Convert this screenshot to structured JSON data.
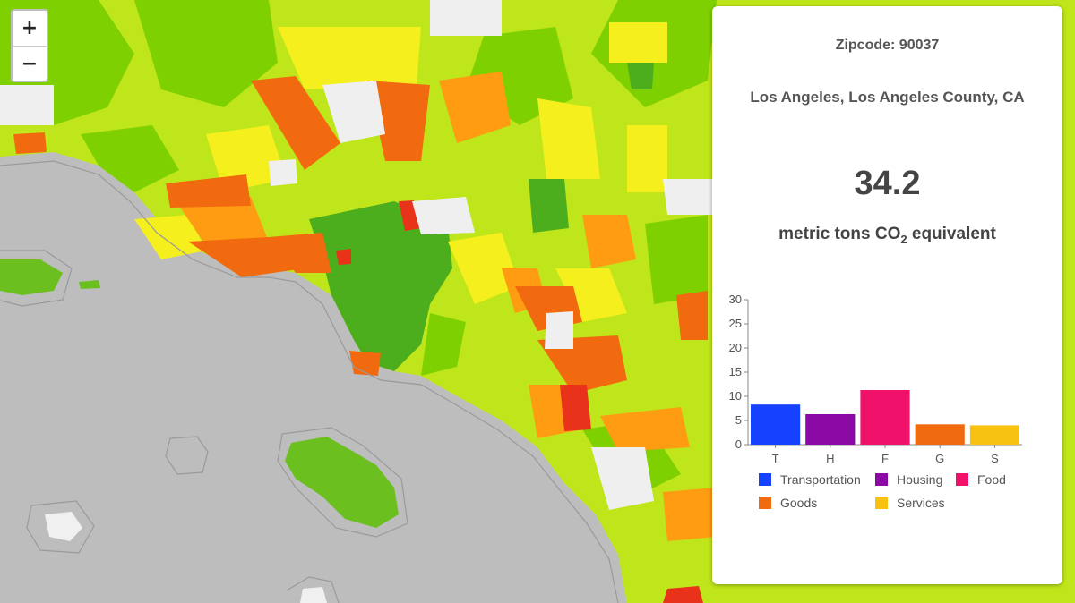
{
  "map": {
    "zoom_in_label": "+",
    "zoom_out_label": "−",
    "colors": {
      "ocean": "#bdbdbd",
      "nodata": "#efefef",
      "green_dark": "#4cae1c",
      "green": "#7fd000",
      "yellow_green": "#bfe61a",
      "yellow": "#f5ef1d",
      "orange": "#ff9c12",
      "red_orange": "#f26a10",
      "red": "#e8321a",
      "island": "#6bbf1e"
    }
  },
  "panel": {
    "zipcode": "Zipcode: 90037",
    "place": "Los Angeles, Los Angeles County, CA",
    "total": "34.2",
    "unit_prefix": "metric tons CO",
    "unit_sub": "2",
    "unit_suffix": " equivalent"
  },
  "chart_data": {
    "type": "bar",
    "categories": [
      "T",
      "H",
      "F",
      "G",
      "S"
    ],
    "values": [
      8.3,
      6.3,
      11.3,
      4.2,
      4.0
    ],
    "colors": [
      "#1541ff",
      "#8b0aa5",
      "#f0116a",
      "#f06a10",
      "#f8c212"
    ],
    "ylim": [
      0,
      30
    ],
    "yticks": [
      0,
      5,
      10,
      15,
      20,
      25,
      30
    ],
    "legend": [
      {
        "label": "Transportation",
        "color": "#1541ff"
      },
      {
        "label": "Housing",
        "color": "#8b0aa5"
      },
      {
        "label": "Food",
        "color": "#f0116a"
      },
      {
        "label": "Goods",
        "color": "#f06a10"
      },
      {
        "label": "Services",
        "color": "#f8c212"
      }
    ]
  }
}
